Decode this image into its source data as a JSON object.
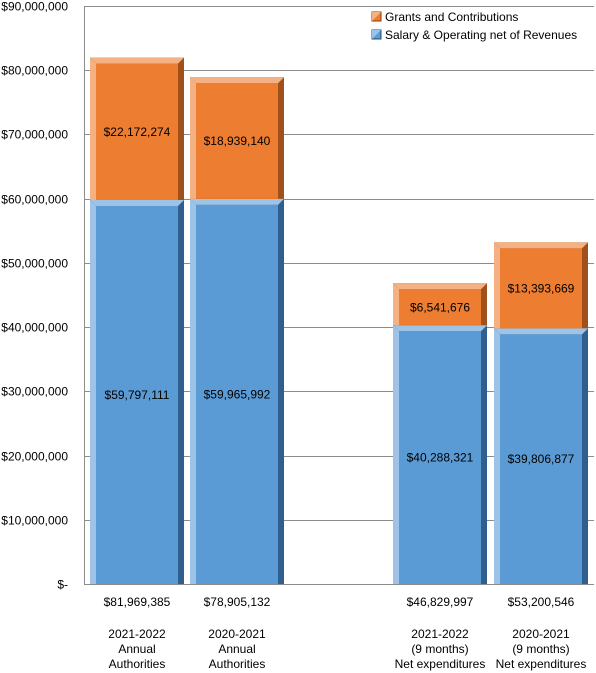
{
  "chart_data": {
    "type": "bar",
    "stacked": true,
    "ylim": [
      0,
      90000000
    ],
    "y_ticks": [
      "$-",
      "$10,000,000",
      "$20,000,000",
      "$30,000,000",
      "$40,000,000",
      "$50,000,000",
      "$60,000,000",
      "$70,000,000",
      "$80,000,000",
      "$90,000,000"
    ],
    "grid": true,
    "legend_position": "top-right",
    "categories": [
      {
        "total_label": "$81,969,385",
        "lines": [
          "2021-2022",
          "Annual",
          "Authorities"
        ]
      },
      {
        "total_label": "$78,905,132",
        "lines": [
          "2020-2021",
          "Annual",
          "Authorities"
        ]
      },
      {
        "total_label": "$46,829,997",
        "lines": [
          "2021-2022",
          "(9 months)",
          "Net expenditures"
        ]
      },
      {
        "total_label": "$53,200,546",
        "lines": [
          "2020-2021",
          "(9 months)",
          "Net expenditures"
        ]
      }
    ],
    "series": [
      {
        "name": "Salary & Operating net of Revenues",
        "color": "#5b9bd5",
        "values": [
          59797111,
          59965992,
          40288321,
          39806877
        ],
        "labels": [
          "$59,797,111",
          "$59,965,992",
          "$40,288,321",
          "$39,806,877"
        ]
      },
      {
        "name": "Grants and Contributions",
        "color": "#ed7d31",
        "values": [
          22172274,
          18939140,
          6541676,
          13393669
        ],
        "labels": [
          "$22,172,274",
          "$18,939,140",
          "$6,541,676",
          "$13,393,669"
        ]
      }
    ],
    "legend_order": [
      1,
      0
    ]
  }
}
